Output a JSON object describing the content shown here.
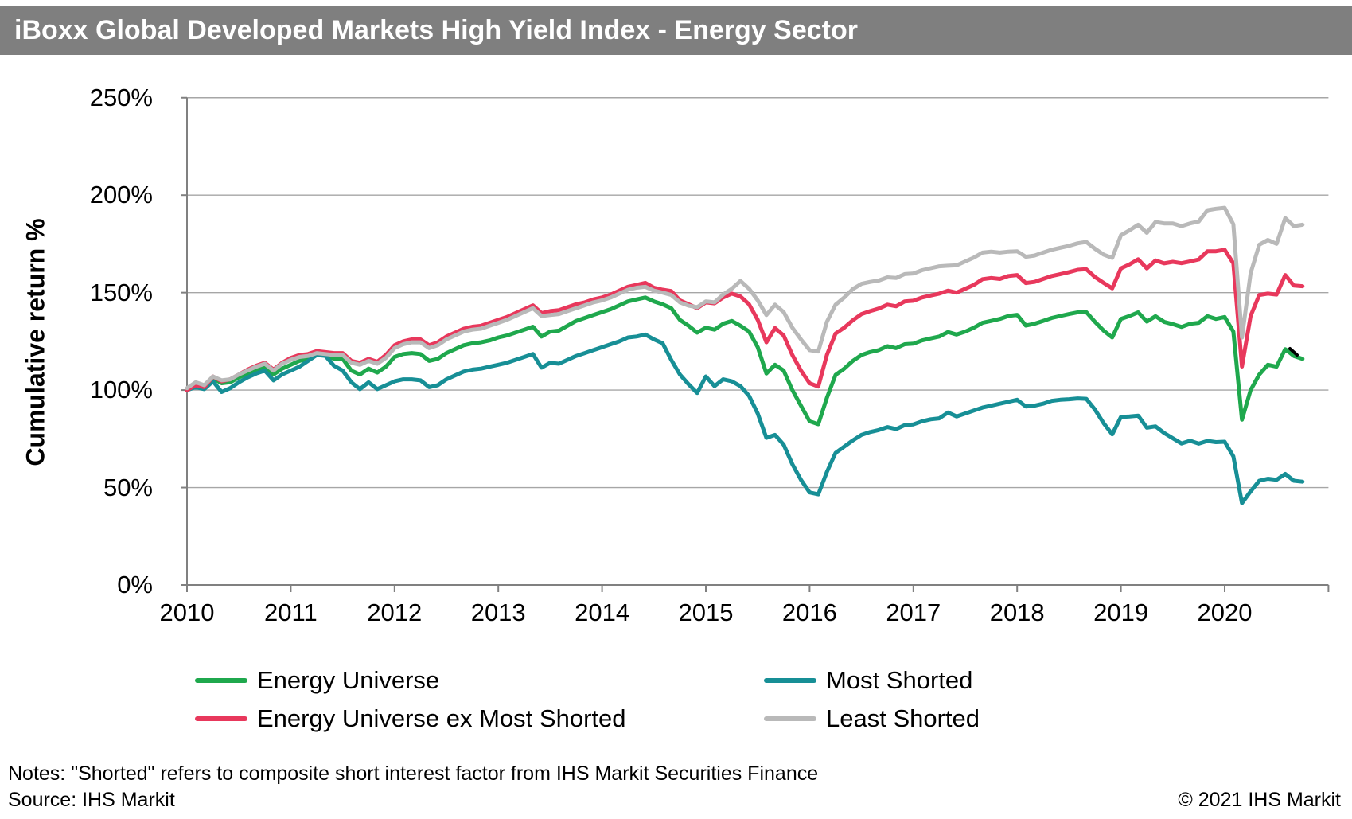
{
  "title": "iBoxx Global Developed Markets High Yield Index - Energy Sector",
  "footer": {
    "notes": "Notes: \"Shorted\" refers to composite short interest factor from IHS Markit Securities Finance",
    "source": "Source: IHS Markit",
    "copyright": "© 2021 IHS Markit"
  },
  "colors": {
    "title_bar": "#7F7F7F",
    "axis": "#808080",
    "gridline": "#A6A6A6",
    "energy_universe": "#1FA84D",
    "most_shorted": "#178F96",
    "energy_universe_ex_most_shorted": "#E8385C",
    "least_shorted": "#B9B9B9"
  },
  "chart_data": {
    "type": "line",
    "title": "iBoxx Global Developed Markets High Yield Index - Energy Sector",
    "xlabel": "",
    "ylabel": "Cumulative return %",
    "ylim": [
      0,
      250
    ],
    "yticks": [
      0,
      50,
      100,
      150,
      200,
      250
    ],
    "ytick_suffix": "%",
    "xticks": [
      "2010",
      "2011",
      "2012",
      "2013",
      "2014",
      "2015",
      "2016",
      "2017",
      "2018",
      "2019",
      "2020"
    ],
    "grid": true,
    "legend_position": "bottom",
    "x_start": "2010-01",
    "x_end": "2020-10",
    "x_interval": "monthly",
    "legend": [
      "Energy Universe",
      "Most Shorted",
      "Energy Universe ex Most Shorted",
      "Least Shorted"
    ],
    "series": [
      {
        "name": "Energy Universe",
        "color": "#1FA84D",
        "values": [
          100,
          102,
          101,
          106,
          103.5,
          104,
          106.5,
          108.5,
          110.5,
          112,
          108,
          111,
          113,
          115,
          116,
          118.5,
          118,
          116,
          116,
          110,
          108,
          111,
          109,
          112,
          117,
          118.5,
          119,
          118.5,
          115,
          116,
          119,
          121,
          123,
          124,
          124.5,
          125.5,
          127,
          128,
          129.5,
          131,
          132.5,
          127.5,
          130,
          130.5,
          133,
          135.5,
          137,
          138.5,
          140,
          141.5,
          143.5,
          145.5,
          146.5,
          147.5,
          145.5,
          144,
          142,
          136,
          133,
          129.5,
          132,
          131,
          134,
          135.5,
          133,
          130,
          122,
          108.5,
          113,
          110,
          100,
          92,
          84,
          82.5,
          96,
          107.8,
          111,
          115,
          118,
          119.5,
          120.5,
          122.5,
          121.5,
          123.5,
          123.8,
          125.5,
          126.5,
          127.5,
          129.8,
          128.5,
          130,
          132,
          134.5,
          135.5,
          136.5,
          138,
          138.6,
          133.1,
          134,
          135.5,
          137,
          138,
          139,
          139.9,
          140,
          135,
          130.5,
          127,
          136.5,
          138,
          139.9,
          135.1,
          137.9,
          135,
          133.8,
          132.4,
          134,
          134.5,
          137.9,
          136.5,
          137.5,
          130,
          84.8,
          100,
          108,
          113,
          112,
          121,
          117.5,
          116
        ]
      },
      {
        "name": "Most Shorted",
        "color": "#178F96",
        "values": [
          100,
          101.5,
          100.5,
          104.5,
          99,
          101,
          104,
          106.5,
          108.5,
          110,
          105,
          108,
          110,
          112,
          115,
          118,
          117.5,
          112.5,
          110,
          104,
          100.5,
          104,
          100.5,
          102.5,
          104.5,
          105.5,
          105.5,
          105,
          101.5,
          102.5,
          105.5,
          107.5,
          109.5,
          110.5,
          111,
          112,
          113,
          114,
          115.5,
          117,
          118.5,
          111.5,
          114,
          113.5,
          115.5,
          117.5,
          119,
          120.5,
          122,
          123.5,
          125,
          127,
          127.5,
          128.5,
          126,
          124,
          115.5,
          108,
          103,
          98.5,
          107,
          102,
          105.5,
          104.5,
          102,
          97,
          88,
          75.5,
          77,
          72,
          62,
          54,
          47.5,
          46.5,
          58,
          67.8,
          71,
          74.2,
          77,
          78.5,
          79.5,
          81,
          80,
          82,
          82.4,
          84,
          85,
          85.5,
          88.5,
          86.5,
          88,
          89.5,
          91,
          92,
          93,
          94,
          95,
          91.6,
          92,
          93,
          94.5,
          95,
          95.3,
          95.7,
          95.5,
          90,
          83,
          77.3,
          86.2,
          86.5,
          86.9,
          80.7,
          81.4,
          78,
          75.3,
          72.6,
          74,
          72.5,
          73.9,
          73.3,
          73.5,
          66,
          42,
          48,
          53.5,
          54.5,
          54,
          57,
          53.5,
          53
        ]
      },
      {
        "name": "Energy Universe ex Most Shorted",
        "color": "#E8385C",
        "values": [
          100,
          102.5,
          101.5,
          107,
          104.5,
          105.5,
          108,
          110.5,
          112.5,
          114,
          110.5,
          114,
          116.5,
          118,
          118.5,
          120,
          119.5,
          119,
          119,
          115,
          114,
          116,
          114.5,
          118,
          123,
          125,
          126,
          126,
          123,
          124.5,
          127.5,
          129.5,
          131.5,
          132.5,
          133,
          134.5,
          136,
          137.5,
          139.5,
          141.5,
          143.5,
          139.5,
          140.5,
          141,
          142.5,
          144,
          145,
          146.5,
          147.5,
          149,
          151,
          153,
          154,
          155,
          152.5,
          151.5,
          150.8,
          146,
          144,
          142,
          145,
          144.5,
          147.5,
          149.5,
          148,
          144,
          136,
          124.5,
          131.8,
          128,
          118,
          110,
          103.5,
          101.8,
          118,
          129,
          132,
          135.8,
          139,
          140.5,
          141.8,
          143.8,
          143,
          145.5,
          145.8,
          147.5,
          148.5,
          149.5,
          151,
          150,
          152,
          154,
          156.9,
          157.5,
          157,
          158.5,
          159,
          154.9,
          155.5,
          157,
          158.5,
          159.5,
          160.5,
          161.7,
          162,
          158,
          155,
          152.2,
          162.4,
          164.5,
          167.1,
          162.4,
          166.5,
          165,
          165.8,
          165.1,
          166,
          167,
          171.2,
          171.2,
          172,
          165,
          112.1,
          138,
          148.8,
          149.5,
          149,
          159,
          153.6,
          153.3
        ]
      },
      {
        "name": "Least Shorted",
        "color": "#B9B9B9",
        "values": [
          101,
          104,
          102.5,
          107,
          105,
          105.5,
          108,
          110,
          112,
          113.5,
          110,
          113.5,
          115.5,
          117,
          117.5,
          119,
          118.5,
          118,
          118,
          114,
          113,
          115,
          113.5,
          116.5,
          121.5,
          123.5,
          124.5,
          124.5,
          121.5,
          123,
          126,
          128,
          130,
          131,
          131.5,
          133,
          134.5,
          136,
          138,
          140,
          142,
          138,
          138.5,
          139,
          140.5,
          142,
          143.5,
          145,
          146,
          147.5,
          149.5,
          151.5,
          152.5,
          153,
          151,
          150,
          148.8,
          145,
          143.3,
          142.5,
          145.5,
          145,
          149,
          152,
          156,
          152,
          146,
          138.5,
          143.8,
          140,
          132,
          126,
          120.5,
          119.8,
          135,
          143.8,
          147.5,
          151.8,
          154.5,
          155.5,
          156.2,
          157.8,
          157.5,
          159.5,
          159.8,
          161.5,
          162.5,
          163.5,
          163.8,
          164,
          166,
          168,
          170.5,
          171,
          170.5,
          171,
          171.2,
          168.4,
          169,
          170.5,
          172,
          173,
          174,
          175.3,
          176,
          172.5,
          169.5,
          167.8,
          179.4,
          182,
          184.8,
          180.7,
          186.2,
          185.5,
          185.5,
          184.1,
          185.5,
          186.5,
          192.3,
          193,
          193.5,
          185,
          127,
          160,
          174.6,
          177,
          175,
          188.2,
          184.1,
          184.8
        ]
      }
    ]
  }
}
